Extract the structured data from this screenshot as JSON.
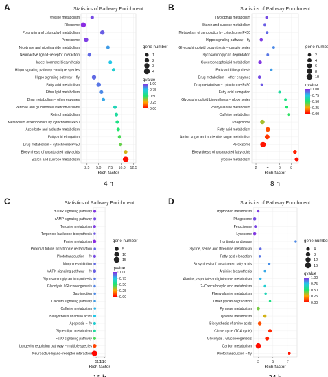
{
  "figure": {
    "caption_note": ""
  },
  "chart_data": [
    {
      "panel_letter": "A",
      "type": "scatter",
      "title": "Statistics of Pathway Enrichment",
      "xlabel": "Rich factor",
      "bottom_label": "4 h",
      "xlim": [
        1.2,
        13.0
      ],
      "x_ticks": [
        2.5,
        5.0,
        7.5,
        10.0,
        12.5
      ],
      "x_tick_labels": [
        "2.5",
        "5.0",
        "7.5",
        "10.0",
        "12.5"
      ],
      "size_legend": {
        "title": "gene number",
        "values": [
          1,
          2,
          3,
          4
        ]
      },
      "color_legend": {
        "title": "qvalue",
        "min": 0.0,
        "max": 1.0,
        "ticks": [
          0.0,
          0.25,
          0.5,
          0.75,
          1.0
        ],
        "tick_labels": [
          "0.00",
          "0.25",
          "0.50",
          "0.75",
          "1.00"
        ]
      },
      "points": [
        {
          "category": "Tyrosine metabolism",
          "rich_factor": 3.6,
          "gene_number": 1,
          "qvalue": 0.95
        },
        {
          "category": "Ribosome",
          "rich_factor": 1.7,
          "gene_number": 3,
          "qvalue": 1.0
        },
        {
          "category": "Porphyrin and chlorophyll metabolism",
          "rich_factor": 5.8,
          "gene_number": 2,
          "qvalue": 0.92
        },
        {
          "category": "Peroxisome",
          "rich_factor": 2.3,
          "gene_number": 2,
          "qvalue": 0.97
        },
        {
          "category": "Nicotinate and nicotinamide metabolism",
          "rich_factor": 7.0,
          "gene_number": 1,
          "qvalue": 0.82
        },
        {
          "category": "Neuroactive ligand−receptor interaction",
          "rich_factor": 3.0,
          "gene_number": 1,
          "qvalue": 0.9
        },
        {
          "category": "Insect hormone biosynthesis",
          "rich_factor": 7.5,
          "gene_number": 1,
          "qvalue": 0.75
        },
        {
          "category": "Hippo signaling pathway −multiple species",
          "rich_factor": 8.2,
          "gene_number": 1,
          "qvalue": 0.7
        },
        {
          "category": "Hippo signaling pathway − fly",
          "rich_factor": 4.0,
          "gene_number": 2,
          "qvalue": 0.9
        },
        {
          "category": "Fatty acid metabolism",
          "rich_factor": 5.0,
          "gene_number": 2,
          "qvalue": 0.88
        },
        {
          "category": "Ether lipid metabolism",
          "rich_factor": 5.6,
          "gene_number": 1,
          "qvalue": 0.85
        },
        {
          "category": "Drug metabolism − other enzymes",
          "rich_factor": 6.0,
          "gene_number": 1,
          "qvalue": 0.8
        },
        {
          "category": "Pentose and glucuronate interconversions",
          "rich_factor": 8.5,
          "gene_number": 1,
          "qvalue": 0.65
        },
        {
          "category": "Retinol metabolism",
          "rich_factor": 8.8,
          "gene_number": 1,
          "qvalue": 0.6
        },
        {
          "category": "Metabolism of xenobiotics by cytochrome P450",
          "rich_factor": 9.0,
          "gene_number": 1,
          "qvalue": 0.55
        },
        {
          "category": "Ascorbate and aldarate metabolism",
          "rich_factor": 9.2,
          "gene_number": 1,
          "qvalue": 0.5
        },
        {
          "category": "Fatty acid elongation",
          "rich_factor": 9.5,
          "gene_number": 1,
          "qvalue": 0.45
        },
        {
          "category": "Drug metabolism − cytochrome P450",
          "rich_factor": 9.7,
          "gene_number": 1,
          "qvalue": 0.42
        },
        {
          "category": "Biosynthesis of unsaturated fatty acids",
          "rich_factor": 10.8,
          "gene_number": 1,
          "qvalue": 0.3
        },
        {
          "category": "Starch and sucrose metabolism",
          "rich_factor": 10.8,
          "gene_number": 4,
          "qvalue": 0.02
        }
      ]
    },
    {
      "panel_letter": "B",
      "type": "scatter",
      "title": "Statistics of Pathway Enrichment",
      "xlabel": "Rich factor",
      "bottom_label": "8 h",
      "xlim": [
        1.3,
        9.2
      ],
      "x_ticks": [
        2,
        4,
        6,
        8
      ],
      "x_tick_labels": [
        "2",
        "4",
        "6",
        "8"
      ],
      "size_legend": {
        "title": "gene number",
        "values": [
          2,
          4,
          6,
          8,
          10
        ]
      },
      "color_legend": {
        "title": "qvalue",
        "min": 0.0,
        "max": 1.0,
        "ticks": [
          0.0,
          0.25,
          0.5,
          0.75,
          1.0
        ],
        "tick_labels": [
          "0.00",
          "0.25",
          "0.50",
          "0.75",
          "1.00"
        ]
      },
      "points": [
        {
          "category": "Tryptophan metabolism",
          "rich_factor": 3.8,
          "gene_number": 1,
          "qvalue": 0.95
        },
        {
          "category": "Starch and sucrose metabolism",
          "rich_factor": 3.5,
          "gene_number": 1,
          "qvalue": 0.92
        },
        {
          "category": "Metabolism of xenobiotics by cytochrome P450",
          "rich_factor": 3.9,
          "gene_number": 1,
          "qvalue": 0.9
        },
        {
          "category": "Hippo signaling pathway − fly",
          "rich_factor": 2.9,
          "gene_number": 2,
          "qvalue": 0.97
        },
        {
          "category": "Glycosphingolipid biosynthesis − ganglio series",
          "rich_factor": 5.0,
          "gene_number": 1,
          "qvalue": 0.85
        },
        {
          "category": "Glycosaminoglycan degradation",
          "rich_factor": 4.0,
          "gene_number": 1,
          "qvalue": 0.88
        },
        {
          "category": "Glycerophospholipid metabolism",
          "rich_factor": 2.7,
          "gene_number": 3,
          "qvalue": 0.98
        },
        {
          "category": "Fatty acid biosynthesis",
          "rich_factor": 4.6,
          "gene_number": 1,
          "qvalue": 0.82
        },
        {
          "category": "Drug metabolism − other enzymes",
          "rich_factor": 2.6,
          "gene_number": 2,
          "qvalue": 0.95
        },
        {
          "category": "Drug metabolism − cytochrome P450",
          "rich_factor": 3.0,
          "gene_number": 1,
          "qvalue": 0.93
        },
        {
          "category": "Fatty acid elongation",
          "rich_factor": 6.0,
          "gene_number": 1,
          "qvalue": 0.6
        },
        {
          "category": "Glycosphingolipid biosynthesis − globo series",
          "rich_factor": 7.0,
          "gene_number": 1,
          "qvalue": 0.55
        },
        {
          "category": "Phenylalanine metabolism",
          "rich_factor": 7.2,
          "gene_number": 1,
          "qvalue": 0.5
        },
        {
          "category": "Caffeine metabolism",
          "rich_factor": 7.5,
          "gene_number": 1,
          "qvalue": 0.48
        },
        {
          "category": "Phagosome",
          "rich_factor": 3.1,
          "gene_number": 5,
          "qvalue": 0.35
        },
        {
          "category": "Fatty acid metabolism",
          "rich_factor": 4.0,
          "gene_number": 5,
          "qvalue": 0.12
        },
        {
          "category": "Amino sugar and nucleotide sugar metabolism",
          "rich_factor": 3.9,
          "gene_number": 6,
          "qvalue": 0.08
        },
        {
          "category": "Peroxisome",
          "rich_factor": 3.2,
          "gene_number": 9,
          "qvalue": 0.03
        },
        {
          "category": "Biosynthesis of unsaturated fatty acids",
          "rich_factor": 8.6,
          "gene_number": 3,
          "qvalue": 0.05
        },
        {
          "category": "Tyrosine metabolism",
          "rich_factor": 8.9,
          "gene_number": 4,
          "qvalue": 0.02
        }
      ]
    },
    {
      "panel_letter": "C",
      "type": "scatter",
      "title": "Statistics of Pathway Enrichment",
      "xlabel": "Rich factor",
      "bottom_label": "16 h",
      "xlim": [
        0,
        22
      ],
      "x_ticks": [
        5,
        10,
        15,
        20
      ],
      "x_tick_labels": [
        "5",
        "10",
        "15",
        "20"
      ],
      "size_legend": {
        "title": "gene number",
        "values": [
          5,
          10,
          15
        ]
      },
      "color_legend": {
        "title": "qvalue",
        "min": 0.0,
        "max": 1.0,
        "ticks": [
          0.0,
          0.25,
          0.5,
          0.75,
          1.0
        ],
        "tick_labels": [
          "0.00",
          "0.25",
          "0.50",
          "0.75",
          "1.00"
        ]
      },
      "points": [
        {
          "category": "mTOR signaling pathway",
          "rich_factor": 2.5,
          "gene_number": 2,
          "qvalue": 0.98
        },
        {
          "category": "cAMP signaling pathway",
          "rich_factor": 2.6,
          "gene_number": 2,
          "qvalue": 0.95
        },
        {
          "category": "Tyrosine metabolism",
          "rich_factor": 2.2,
          "gene_number": 2,
          "qvalue": 0.97
        },
        {
          "category": "Terpenoid backbone biosynthesis",
          "rich_factor": 2.4,
          "gene_number": 1,
          "qvalue": 0.93
        },
        {
          "category": "Purine metabolism",
          "rich_factor": 2.0,
          "gene_number": 4,
          "qvalue": 1.0
        },
        {
          "category": "Proximal tubule bicarbonate reclamation",
          "rich_factor": 2.7,
          "gene_number": 1,
          "qvalue": 0.9
        },
        {
          "category": "Phototransduction − fly",
          "rich_factor": 2.3,
          "gene_number": 2,
          "qvalue": 0.95
        },
        {
          "category": "Morphine addiction",
          "rich_factor": 2.6,
          "gene_number": 1,
          "qvalue": 0.9
        },
        {
          "category": "MAPK signaling pathway − fly",
          "rich_factor": 2.2,
          "gene_number": 3,
          "qvalue": 0.92
        },
        {
          "category": "Glycosaminoglycan biosynthesis",
          "rich_factor": 2.5,
          "gene_number": 1,
          "qvalue": 0.88
        },
        {
          "category": "Glycolysis / Gluconeogenesis",
          "rich_factor": 2.4,
          "gene_number": 1,
          "qvalue": 0.86
        },
        {
          "category": "Gap junction",
          "rich_factor": 2.7,
          "gene_number": 1,
          "qvalue": 0.85
        },
        {
          "category": "Calcium signaling pathway",
          "rich_factor": 2.5,
          "gene_number": 1,
          "qvalue": 0.82
        },
        {
          "category": "Caffeine metabolism",
          "rich_factor": 2.8,
          "gene_number": 1,
          "qvalue": 0.78
        },
        {
          "category": "Biosynthesis of amino acids",
          "rich_factor": 2.4,
          "gene_number": 2,
          "qvalue": 0.75
        },
        {
          "category": "Apoptosis − fly",
          "rich_factor": 2.3,
          "gene_number": 2,
          "qvalue": 0.7
        },
        {
          "category": "Glycerolipid metabolism",
          "rich_factor": 2.2,
          "gene_number": 2,
          "qvalue": 0.6
        },
        {
          "category": "FoxO signaling pathway",
          "rich_factor": 2.3,
          "gene_number": 2,
          "qvalue": 0.45
        },
        {
          "category": "Longevity regulating pathway − multiple species",
          "rich_factor": 2.4,
          "gene_number": 4,
          "qvalue": 0.1
        },
        {
          "category": "Neuroactive ligand−receptor interaction",
          "rich_factor": 2.1,
          "gene_number": 14,
          "qvalue": 0.01
        }
      ]
    },
    {
      "panel_letter": "D",
      "type": "scatter",
      "title": "Statistics of Pathway Enrichment",
      "xlabel": "Rich factor",
      "bottom_label": "24 h",
      "xlim": [
        2.3,
        8.3
      ],
      "x_ticks": [
        3,
        5,
        7
      ],
      "x_tick_labels": [
        "3",
        "5",
        "7"
      ],
      "size_legend": {
        "title": "gene number",
        "values": [
          4,
          8,
          12,
          16
        ]
      },
      "color_legend": {
        "title": "qvalue",
        "min": 0.0,
        "max": 1.0,
        "ticks": [
          0.0,
          0.25,
          0.5,
          0.75,
          1.0
        ],
        "tick_labels": [
          "0.00",
          "0.25",
          "0.50",
          "0.75",
          "1.00"
        ]
      },
      "points": [
        {
          "category": "Tryptophan metabolism",
          "rich_factor": 3.0,
          "gene_number": 1,
          "qvalue": 0.97
        },
        {
          "category": "Phagosome",
          "rich_factor": 2.5,
          "gene_number": 3,
          "qvalue": 0.95
        },
        {
          "category": "Peroxisome",
          "rich_factor": 2.6,
          "gene_number": 2,
          "qvalue": 0.96
        },
        {
          "category": "Lysosome",
          "rich_factor": 2.5,
          "gene_number": 3,
          "qvalue": 0.98
        },
        {
          "category": "Huntington's disease",
          "rich_factor": 8.1,
          "gene_number": 1,
          "qvalue": 0.85
        },
        {
          "category": "Glycine, serine and threonine metabolism",
          "rich_factor": 3.3,
          "gene_number": 1,
          "qvalue": 0.9
        },
        {
          "category": "Fatty acid elongation",
          "rich_factor": 3.2,
          "gene_number": 1,
          "qvalue": 0.88
        },
        {
          "category": "Biosynthesis of unsaturated fatty acids",
          "rich_factor": 4.5,
          "gene_number": 1,
          "qvalue": 0.84
        },
        {
          "category": "Arginine biosynthesis",
          "rich_factor": 3.9,
          "gene_number": 1,
          "qvalue": 0.8
        },
        {
          "category": "Alanine, aspartate and glutamate metabolism",
          "rich_factor": 3.3,
          "gene_number": 1,
          "qvalue": 0.78
        },
        {
          "category": "2−Oxocarboxylic acid metabolism",
          "rich_factor": 3.9,
          "gene_number": 1,
          "qvalue": 0.7
        },
        {
          "category": "Phenylalanine metabolism",
          "rich_factor": 4.0,
          "gene_number": 1,
          "qvalue": 0.65
        },
        {
          "category": "Other glycan degradation",
          "rich_factor": 4.6,
          "gene_number": 1,
          "qvalue": 0.55
        },
        {
          "category": "Pyruvate metabolism",
          "rich_factor": 3.0,
          "gene_number": 3,
          "qvalue": 0.4
        },
        {
          "category": "Tyrosine metabolism",
          "rich_factor": 3.9,
          "gene_number": 3,
          "qvalue": 0.3
        },
        {
          "category": "Biosynthesis of amino acids",
          "rich_factor": 3.2,
          "gene_number": 5,
          "qvalue": 0.12
        },
        {
          "category": "Citrate cycle (TCA cycle)",
          "rich_factor": 4.6,
          "gene_number": 4,
          "qvalue": 0.06
        },
        {
          "category": "Glycolysis / Gluconeogenesis",
          "rich_factor": 4.2,
          "gene_number": 6,
          "qvalue": 0.05
        },
        {
          "category": "Carbon metabolism",
          "rich_factor": 3.0,
          "gene_number": 12,
          "qvalue": 0.02
        },
        {
          "category": "Phototransduction − fly",
          "rich_factor": 7.2,
          "gene_number": 3,
          "qvalue": 0.03
        }
      ]
    }
  ]
}
